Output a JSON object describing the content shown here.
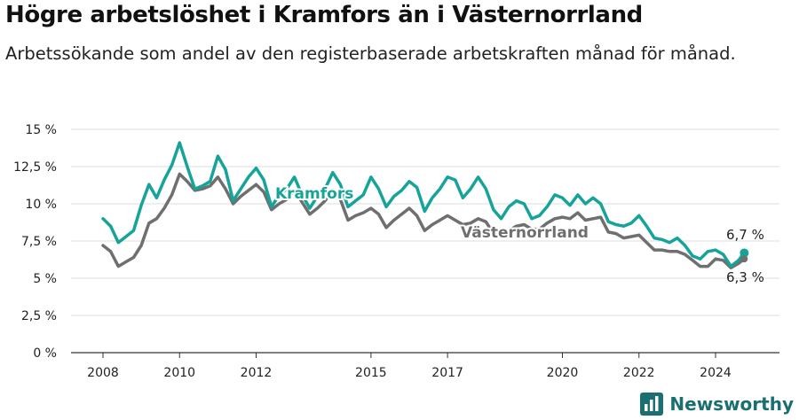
{
  "title": "Högre arbetslöshet i Kramfors än i Västernorrland",
  "subtitle": "Arbetssökande som andel av den registerbaserade arbetskraften månad för månad.",
  "brand": {
    "name": "Newsworthy"
  },
  "colors": {
    "kramfors": "#16a399",
    "vasternorrland": "#6f6f6f",
    "grid": "#dddddd",
    "brand": "#1a6f70"
  },
  "chart_data": {
    "type": "line",
    "title": "Högre arbetslöshet i Kramfors än i Västernorrland",
    "xlabel": "",
    "ylabel": "",
    "x_range": [
      2007.5,
      2025.2
    ],
    "ylim": [
      0,
      15
    ],
    "y_ticks": [
      {
        "value": 0,
        "label": "0 %"
      },
      {
        "value": 2.5,
        "label": "2,5 %"
      },
      {
        "value": 5,
        "label": "5 %"
      },
      {
        "value": 7.5,
        "label": "7,5 %"
      },
      {
        "value": 10,
        "label": "10 %"
      },
      {
        "value": 12.5,
        "label": "12,5 %"
      },
      {
        "value": 15,
        "label": "15 %"
      }
    ],
    "x_ticks": [
      {
        "value": 2008,
        "label": "2008"
      },
      {
        "value": 2010,
        "label": "2010"
      },
      {
        "value": 2012,
        "label": "2012"
      },
      {
        "value": 2015,
        "label": "2015"
      },
      {
        "value": 2017,
        "label": "2017"
      },
      {
        "value": 2020,
        "label": "2020"
      },
      {
        "value": 2022,
        "label": "2022"
      },
      {
        "value": 2024,
        "label": "2024"
      }
    ],
    "grid": true,
    "legend": "inline labels",
    "series": [
      {
        "name": "Kramfors",
        "color": "#16a399",
        "x": [
          2008.0,
          2008.2,
          2008.4,
          2008.6,
          2008.8,
          2009.0,
          2009.2,
          2009.4,
          2009.6,
          2009.8,
          2010.0,
          2010.2,
          2010.4,
          2010.6,
          2010.8,
          2011.0,
          2011.2,
          2011.4,
          2011.6,
          2011.8,
          2012.0,
          2012.2,
          2012.4,
          2012.6,
          2012.8,
          2013.0,
          2013.2,
          2013.4,
          2013.6,
          2013.8,
          2014.0,
          2014.2,
          2014.4,
          2014.6,
          2014.8,
          2015.0,
          2015.2,
          2015.4,
          2015.6,
          2015.8,
          2016.0,
          2016.2,
          2016.4,
          2016.6,
          2016.8,
          2017.0,
          2017.2,
          2017.4,
          2017.6,
          2017.8,
          2018.0,
          2018.2,
          2018.4,
          2018.6,
          2018.8,
          2019.0,
          2019.2,
          2019.4,
          2019.6,
          2019.8,
          2020.0,
          2020.2,
          2020.4,
          2020.6,
          2020.8,
          2021.0,
          2021.2,
          2021.4,
          2021.6,
          2021.8,
          2022.0,
          2022.2,
          2022.4,
          2022.6,
          2022.8,
          2023.0,
          2023.2,
          2023.4,
          2023.6,
          2023.8,
          2024.0,
          2024.2,
          2024.4,
          2024.6,
          2024.75
        ],
        "y": [
          9.0,
          8.5,
          7.4,
          7.8,
          8.2,
          9.9,
          11.3,
          10.4,
          11.6,
          12.6,
          14.1,
          12.5,
          11.0,
          11.2,
          11.5,
          13.2,
          12.3,
          10.2,
          11.0,
          11.8,
          12.4,
          11.6,
          9.8,
          10.6,
          11.0,
          11.8,
          10.6,
          9.7,
          10.5,
          11.0,
          12.1,
          11.3,
          9.8,
          10.2,
          10.6,
          11.8,
          11.0,
          9.8,
          10.5,
          10.9,
          11.5,
          11.1,
          9.5,
          10.4,
          11.0,
          11.8,
          11.6,
          10.4,
          11.0,
          11.8,
          11.0,
          9.6,
          9.0,
          9.8,
          10.2,
          10.0,
          9.0,
          9.2,
          9.8,
          10.6,
          10.4,
          9.9,
          10.6,
          10.0,
          10.4,
          10.0,
          8.8,
          8.6,
          8.5,
          8.7,
          9.2,
          8.5,
          7.7,
          7.6,
          7.4,
          7.7,
          7.2,
          6.5,
          6.3,
          6.8,
          6.9,
          6.6,
          5.8,
          6.2,
          6.7
        ]
      },
      {
        "name": "Västernorrland",
        "color": "#6f6f6f",
        "x": [
          2008.0,
          2008.2,
          2008.4,
          2008.6,
          2008.8,
          2009.0,
          2009.2,
          2009.4,
          2009.6,
          2009.8,
          2010.0,
          2010.2,
          2010.4,
          2010.6,
          2010.8,
          2011.0,
          2011.2,
          2011.4,
          2011.6,
          2011.8,
          2012.0,
          2012.2,
          2012.4,
          2012.6,
          2012.8,
          2013.0,
          2013.2,
          2013.4,
          2013.6,
          2013.8,
          2014.0,
          2014.2,
          2014.4,
          2014.6,
          2014.8,
          2015.0,
          2015.2,
          2015.4,
          2015.6,
          2015.8,
          2016.0,
          2016.2,
          2016.4,
          2016.6,
          2016.8,
          2017.0,
          2017.2,
          2017.4,
          2017.6,
          2017.8,
          2018.0,
          2018.2,
          2018.4,
          2018.6,
          2018.8,
          2019.0,
          2019.2,
          2019.4,
          2019.6,
          2019.8,
          2020.0,
          2020.2,
          2020.4,
          2020.6,
          2020.8,
          2021.0,
          2021.2,
          2021.4,
          2021.6,
          2021.8,
          2022.0,
          2022.2,
          2022.4,
          2022.6,
          2022.8,
          2023.0,
          2023.2,
          2023.4,
          2023.6,
          2023.8,
          2024.0,
          2024.2,
          2024.4,
          2024.6,
          2024.75
        ],
        "y": [
          7.2,
          6.8,
          5.8,
          6.1,
          6.4,
          7.2,
          8.7,
          9.0,
          9.7,
          10.6,
          12.0,
          11.5,
          10.9,
          11.0,
          11.2,
          11.8,
          11.0,
          10.0,
          10.5,
          10.9,
          11.3,
          10.8,
          9.6,
          10.0,
          10.3,
          10.9,
          10.1,
          9.3,
          9.7,
          10.2,
          10.9,
          10.3,
          8.9,
          9.2,
          9.4,
          9.7,
          9.3,
          8.4,
          8.9,
          9.3,
          9.7,
          9.2,
          8.2,
          8.6,
          8.9,
          9.2,
          8.9,
          8.6,
          8.7,
          9.0,
          8.8,
          8.0,
          7.8,
          8.2,
          8.5,
          8.6,
          8.3,
          8.3,
          8.7,
          9.0,
          9.1,
          9.0,
          9.4,
          8.9,
          9.0,
          9.1,
          8.1,
          8.0,
          7.7,
          7.8,
          7.9,
          7.4,
          6.9,
          6.9,
          6.8,
          6.8,
          6.6,
          6.2,
          5.8,
          5.8,
          6.3,
          6.2,
          5.7,
          6.0,
          6.3
        ]
      }
    ],
    "end_labels": [
      {
        "series": "Kramfors",
        "label": "6,7 %"
      },
      {
        "series": "Västernorrland",
        "label": "6,3 %"
      }
    ]
  }
}
